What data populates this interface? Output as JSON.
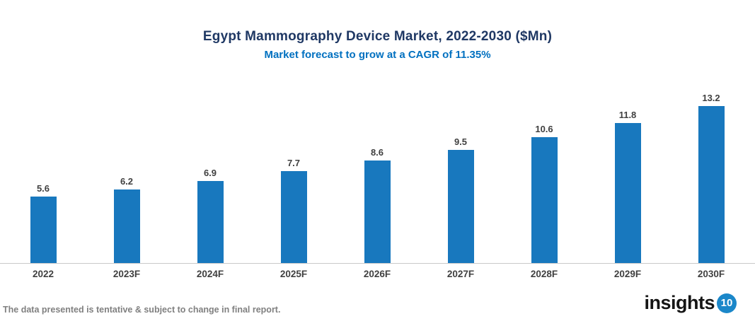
{
  "chart_data": {
    "type": "bar",
    "title": "Egypt Mammography Device Market, 2022-2030 ($Mn)",
    "subtitle": "Market forecast to grow at a CAGR of 11.35%",
    "categories": [
      "2022",
      "2023F",
      "2024F",
      "2025F",
      "2026F",
      "2027F",
      "2028F",
      "2029F",
      "2030F"
    ],
    "values": [
      5.6,
      6.2,
      6.9,
      7.7,
      8.6,
      9.5,
      10.6,
      11.8,
      13.2
    ],
    "xlabel": "",
    "ylabel": "",
    "ylim": [
      0,
      15
    ],
    "y_axis_visible": false,
    "grid": false,
    "legend": "none",
    "data_labels": true,
    "bar_color": "#1878BE",
    "value_label_color": "#404040",
    "axis_label_color": "#404040",
    "axis_line_color": "#C9C9C9",
    "title_color": "#1F3864",
    "subtitle_color": "#0070C0"
  },
  "footer": {
    "disclaimer": "The data presented is tentative & subject to change in final report.",
    "logo_text": "insights",
    "logo_badge": "10",
    "logo_badge_color": "#1B87C9"
  }
}
